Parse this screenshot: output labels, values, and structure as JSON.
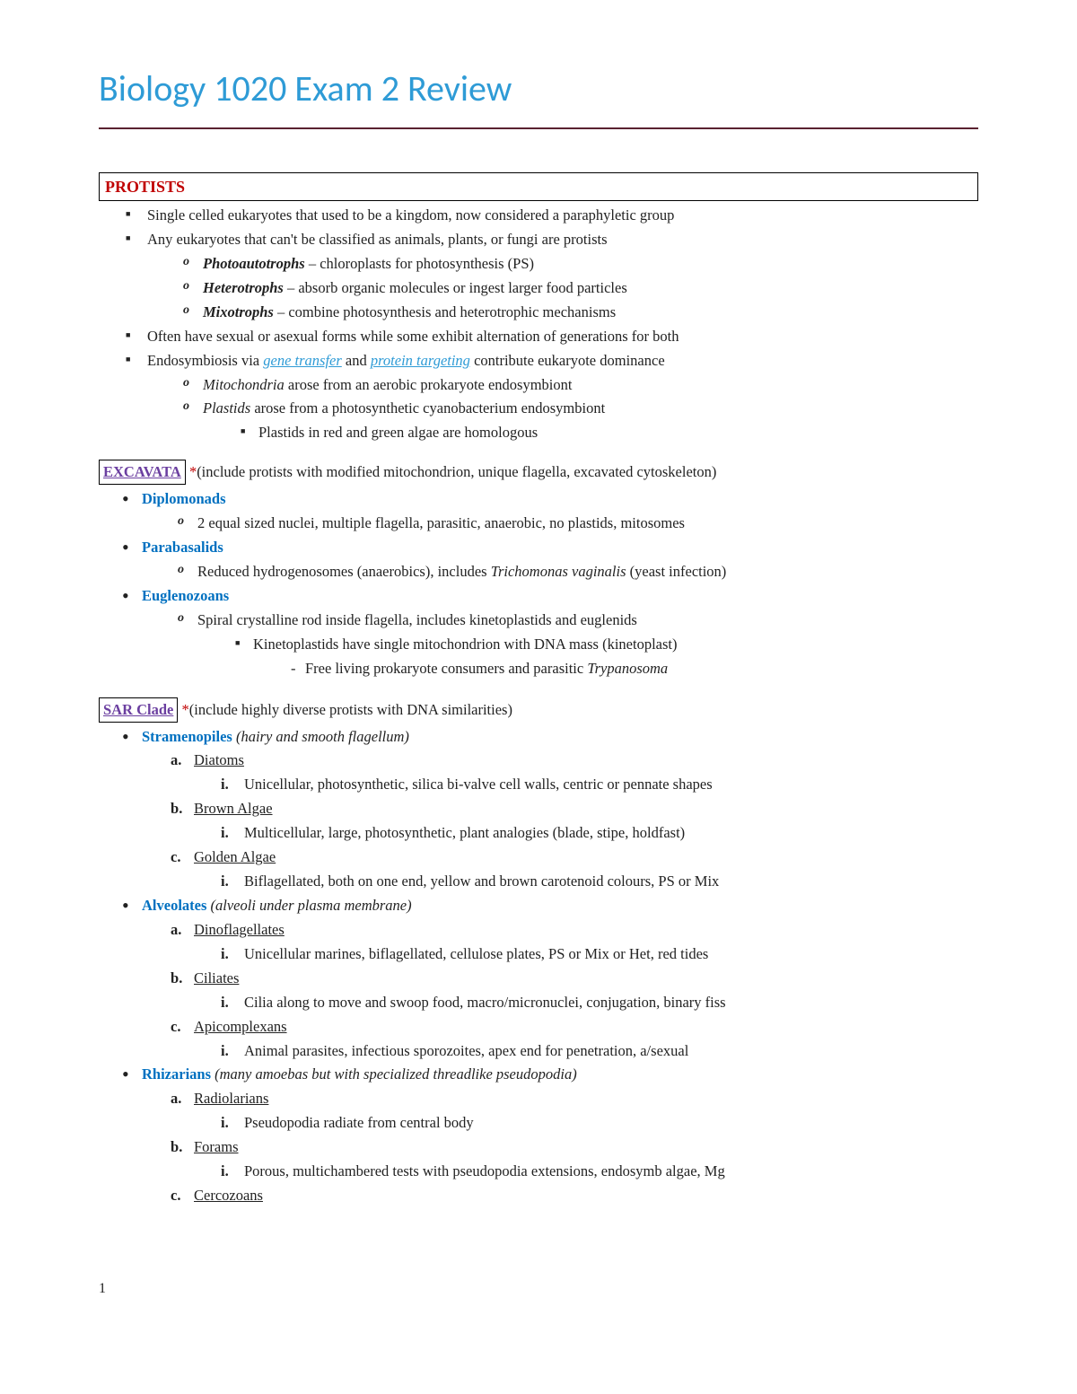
{
  "meta": {
    "page_number": "1"
  },
  "title": "Biology 1020 Exam 2 Review",
  "colors": {
    "title": "#2e9bd6",
    "rule": "#5a2230",
    "section_label": "#c00000",
    "clade_label": "#6b3fa0",
    "blue_bold": "#0070c0",
    "link": "#2e9bd6",
    "star": "#c00000"
  },
  "protists": {
    "heading": "PROTISTS",
    "b1": "Single celled eukaryotes that used to be a kingdom, now considered a paraphyletic group",
    "b2": "Any eukaryotes that can't be classified as animals, plants, or fungi are protists",
    "b2a_term": "Photoautotrophs",
    "b2a_rest": " – chloroplasts for photosynthesis (PS)",
    "b2b_term": "Heterotrophs",
    "b2b_rest": " – absorb organic molecules or ingest larger food particles",
    "b2c_term": "Mixotrophs",
    "b2c_rest": " – combine photosynthesis and heterotrophic mechanisms",
    "b3": "Often have sexual or asexual forms while some exhibit alternation of generations for both",
    "b4_pre": "Endosymbiosis via ",
    "b4_link1": "gene transfer",
    "b4_mid": " and ",
    "b4_link2": "protein targeting",
    "b4_post": " contribute eukaryote dominance",
    "b4a_term": "Mitochondria",
    "b4a_rest": " arose from an aerobic prokaryote endosymbiont",
    "b4b_term": "Plastids",
    "b4b_rest": " arose from a photosynthetic cyanobacterium endosymbiont",
    "b4b_i": "Plastids in red and green algae are homologous"
  },
  "excavata": {
    "heading": "EXCAVATA",
    "star": " *",
    "desc": "(include protists with modified mitochondrion, unique flagella, excavated cytoskeleton)",
    "g1": "Diplomonads",
    "g1a": "2 equal sized nuclei, multiple flagella, parasitic, anaerobic, no plastids, mitosomes",
    "g2": "Parabasalids",
    "g2a_pre": "Reduced hydrogenosomes (anaerobics), includes ",
    "g2a_it": "Trichomonas vaginalis",
    "g2a_post": " (yeast infection)",
    "g3": "Euglenozoans",
    "g3a": "Spiral crystalline rod inside flagella, includes kinetoplastids and euglenids",
    "g3a_i": "Kinetoplastids have single mitochondrion with DNA mass (kinetoplast)",
    "g3a_i_1_pre": "Free living prokaryote consumers and parasitic ",
    "g3a_i_1_it": "Trypanosoma"
  },
  "sar": {
    "heading": "SAR Clade",
    "star": " *",
    "desc": "(include highly diverse protists with DNA similarities)",
    "g1": "Stramenopiles ",
    "g1_note": "(hairy and smooth flagellum)",
    "g1a": "Diatoms",
    "g1a_i": "Unicellular, photosynthetic, silica bi-valve cell walls, centric or pennate shapes",
    "g1b": "Brown Algae",
    "g1b_i": "Multicellular, large, photosynthetic, plant analogies (blade, stipe, holdfast)",
    "g1c": "Golden Algae",
    "g1c_i": "Biflagellated, both on one end, yellow and brown carotenoid colours, PS or Mix",
    "g2": "Alveolates ",
    "g2_note": "(alveoli under plasma membrane)",
    "g2a": "Dinoflagellates",
    "g2a_i": "Unicellular marines, biflagellated, cellulose plates, PS or Mix or Het, red tides",
    "g2b": "Ciliates",
    "g2b_i": "Cilia along to move and swoop food, macro/micronuclei, conjugation, binary fiss",
    "g2c": "Apicomplexans",
    "g2c_i": "Animal parasites, infectious sporozoites, apex end for penetration, a/sexual",
    "g3": "Rhizarians ",
    "g3_note": "(many amoebas but with specialized threadlike pseudopodia)",
    "g3a": "Radiolarians",
    "g3a_i": "Pseudopodia radiate from central body",
    "g3b": "Forams",
    "g3b_i": "Porous, multichambered tests with pseudopodia extensions, endosymb algae, Mg",
    "g3c": "Cercozoans"
  }
}
